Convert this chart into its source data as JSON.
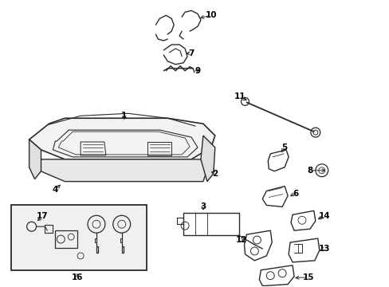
{
  "bg_color": "#ffffff",
  "fig_width": 4.89,
  "fig_height": 3.6,
  "dpi": 100,
  "lc": "#2a2a2a",
  "tc": "#000000",
  "fs": 7.5,
  "fs_small": 6.5
}
